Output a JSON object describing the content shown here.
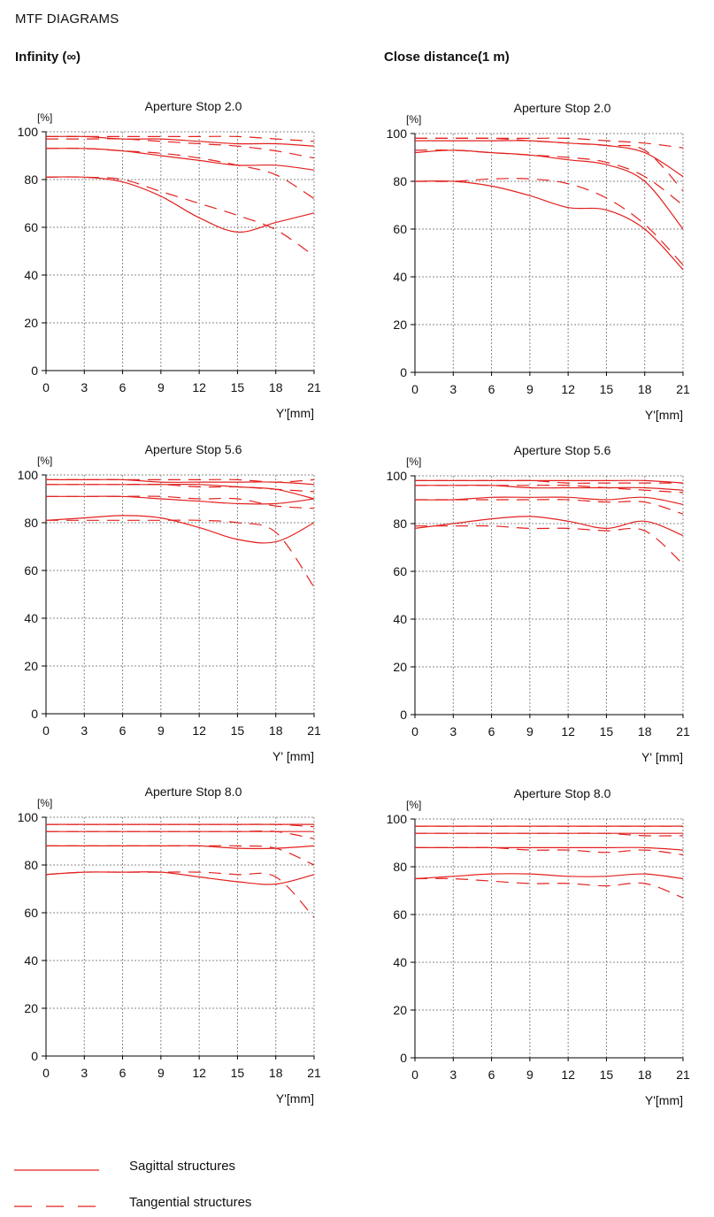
{
  "page": {
    "heading": "MTF DIAGRAMS",
    "column_titles": [
      "Infinity (∞)",
      "Close distance(1 m)"
    ]
  },
  "colors": {
    "curve": "#e2221f",
    "grid": "#888888",
    "axis": "#000000"
  },
  "legend": {
    "sagittal": "Sagittal structures",
    "tangential": "Tangential structures"
  },
  "chart_data": [
    {
      "type": "line",
      "column": "Infinity (∞)",
      "title": "Aperture Stop 2.0",
      "ylabel": "[%]",
      "xlabel": "Y'[mm]",
      "xlim": [
        0,
        21
      ],
      "ylim": [
        0,
        100
      ],
      "xticks": [
        0,
        3,
        6,
        9,
        12,
        15,
        18,
        21
      ],
      "yticks": [
        0,
        20,
        40,
        60,
        80,
        100
      ],
      "grid": true,
      "x": [
        0,
        3,
        6,
        9,
        12,
        15,
        18,
        21
      ],
      "series": [
        {
          "style": "solid",
          "values": [
            98,
            98,
            97,
            97,
            96,
            95,
            95,
            94
          ]
        },
        {
          "style": "dashed",
          "values": [
            98,
            98,
            98,
            98,
            98,
            98,
            97,
            96
          ]
        },
        {
          "style": "solid",
          "values": [
            93,
            93,
            92,
            90,
            88,
            86,
            86,
            84
          ]
        },
        {
          "style": "dashed",
          "values": [
            97,
            97,
            97,
            96,
            95,
            94,
            92,
            89
          ]
        },
        {
          "style": "solid",
          "values": [
            81,
            81,
            79,
            73,
            64,
            58,
            62,
            66
          ]
        },
        {
          "style": "dashed",
          "values": [
            93,
            93,
            92,
            91,
            89,
            86,
            82,
            72
          ]
        },
        {
          "style": "dashed",
          "values": [
            81,
            81,
            80,
            75,
            70,
            65,
            59,
            48
          ]
        }
      ]
    },
    {
      "type": "line",
      "column": "Close distance(1 m)",
      "title": "Aperture Stop 2.0",
      "ylabel": "[%]",
      "xlabel": "Y'[mm]",
      "xlim": [
        0,
        21
      ],
      "ylim": [
        0,
        100
      ],
      "xticks": [
        0,
        3,
        6,
        9,
        12,
        15,
        18,
        21
      ],
      "yticks": [
        0,
        20,
        40,
        60,
        80,
        100
      ],
      "grid": true,
      "x": [
        0,
        3,
        6,
        9,
        12,
        15,
        18,
        21
      ],
      "series": [
        {
          "style": "solid",
          "values": [
            97,
            97,
            97,
            97,
            96,
            95,
            92,
            82
          ]
        },
        {
          "style": "dashed",
          "values": [
            98,
            98,
            98,
            98,
            98,
            97,
            96,
            94
          ]
        },
        {
          "style": "solid",
          "values": [
            92,
            93,
            92,
            91,
            89,
            87,
            80,
            60
          ]
        },
        {
          "style": "dashed",
          "values": [
            98,
            98,
            98,
            97,
            96,
            95,
            93,
            76
          ]
        },
        {
          "style": "solid",
          "values": [
            80,
            80,
            78,
            74,
            69,
            68,
            60,
            43
          ]
        },
        {
          "style": "dashed",
          "values": [
            93,
            93,
            92,
            91,
            90,
            88,
            82,
            70
          ]
        },
        {
          "style": "dashed",
          "values": [
            80,
            80,
            81,
            81,
            79,
            73,
            62,
            45
          ]
        }
      ]
    },
    {
      "type": "line",
      "column": "Infinity (∞)",
      "title": "Aperture Stop 5.6",
      "ylabel": "[%]",
      "xlabel": "Y' [mm]",
      "xlim": [
        0,
        21
      ],
      "ylim": [
        0,
        100
      ],
      "xticks": [
        0,
        3,
        6,
        9,
        12,
        15,
        18,
        21
      ],
      "yticks": [
        0,
        20,
        40,
        60,
        80,
        100
      ],
      "grid": true,
      "x": [
        0,
        3,
        6,
        9,
        12,
        15,
        18,
        21
      ],
      "series": [
        {
          "style": "solid",
          "values": [
            98,
            98,
            98,
            97,
            97,
            97,
            97,
            96
          ]
        },
        {
          "style": "dashed",
          "values": [
            98,
            98,
            98,
            98,
            98,
            98,
            97,
            98
          ]
        },
        {
          "style": "solid",
          "values": [
            96,
            96,
            96,
            96,
            96,
            95,
            94,
            90
          ]
        },
        {
          "style": "dashed",
          "values": [
            96,
            96,
            96,
            96,
            95,
            95,
            94,
            93
          ]
        },
        {
          "style": "solid",
          "values": [
            91,
            91,
            91,
            90,
            89,
            88,
            88,
            90
          ]
        },
        {
          "style": "dashed",
          "values": [
            91,
            91,
            91,
            91,
            90,
            90,
            87,
            86
          ]
        },
        {
          "style": "solid",
          "values": [
            81,
            82,
            83,
            82,
            78,
            73,
            72,
            80
          ]
        },
        {
          "style": "dashed",
          "values": [
            81,
            81,
            81,
            81,
            81,
            80,
            76,
            53
          ]
        }
      ]
    },
    {
      "type": "line",
      "column": "Close distance(1 m)",
      "title": "Aperture Stop 5.6",
      "ylabel": "[%]",
      "xlabel": "Y' [mm]",
      "xlim": [
        0,
        21
      ],
      "ylim": [
        0,
        100
      ],
      "xticks": [
        0,
        3,
        6,
        9,
        12,
        15,
        18,
        21
      ],
      "yticks": [
        0,
        20,
        40,
        60,
        80,
        100
      ],
      "grid": true,
      "x": [
        0,
        3,
        6,
        9,
        12,
        15,
        18,
        21
      ],
      "series": [
        {
          "style": "solid",
          "values": [
            98,
            98,
            98,
            98,
            98,
            98,
            98,
            97
          ]
        },
        {
          "style": "dashed",
          "values": [
            98,
            98,
            98,
            98,
            97,
            97,
            97,
            97
          ]
        },
        {
          "style": "solid",
          "values": [
            96,
            96,
            96,
            95,
            95,
            95,
            95,
            94
          ]
        },
        {
          "style": "dashed",
          "values": [
            96,
            96,
            96,
            96,
            96,
            95,
            94,
            93
          ]
        },
        {
          "style": "solid",
          "values": [
            90,
            90,
            91,
            91,
            91,
            90,
            91,
            88
          ]
        },
        {
          "style": "dashed",
          "values": [
            90,
            90,
            90,
            90,
            90,
            89,
            89,
            84
          ]
        },
        {
          "style": "solid",
          "values": [
            78,
            80,
            82,
            83,
            81,
            78,
            81,
            75
          ]
        },
        {
          "style": "dashed",
          "values": [
            79,
            79,
            79,
            78,
            78,
            77,
            77,
            63
          ]
        }
      ]
    },
    {
      "type": "line",
      "column": "Infinity (∞)",
      "title": "Aperture Stop 8.0",
      "ylabel": "[%]",
      "xlabel": "Y'[mm]",
      "xlim": [
        0,
        21
      ],
      "ylim": [
        0,
        100
      ],
      "xticks": [
        0,
        3,
        6,
        9,
        12,
        15,
        18,
        21
      ],
      "yticks": [
        0,
        20,
        40,
        60,
        80,
        100
      ],
      "grid": true,
      "x": [
        0,
        3,
        6,
        9,
        12,
        15,
        18,
        21
      ],
      "series": [
        {
          "style": "solid",
          "values": [
            97,
            97,
            97,
            97,
            97,
            97,
            97,
            97
          ]
        },
        {
          "style": "dashed",
          "values": [
            97,
            97,
            97,
            97,
            97,
            97,
            97,
            96
          ]
        },
        {
          "style": "solid",
          "values": [
            94,
            94,
            94,
            94,
            94,
            94,
            94,
            94
          ]
        },
        {
          "style": "dashed",
          "values": [
            94,
            94,
            94,
            94,
            94,
            94,
            94,
            91
          ]
        },
        {
          "style": "solid",
          "values": [
            88,
            88,
            88,
            88,
            88,
            87,
            87,
            88
          ]
        },
        {
          "style": "dashed",
          "values": [
            88,
            88,
            88,
            88,
            88,
            88,
            87,
            80
          ]
        },
        {
          "style": "solid",
          "values": [
            76,
            77,
            77,
            77,
            75,
            73,
            72,
            76
          ]
        },
        {
          "style": "dashed",
          "values": [
            76,
            77,
            77,
            77,
            77,
            76,
            75,
            58
          ]
        }
      ]
    },
    {
      "type": "line",
      "column": "Close distance(1 m)",
      "title": "Aperture Stop 8.0",
      "ylabel": "[%]",
      "xlabel": "Y'[mm]",
      "xlim": [
        0,
        21
      ],
      "ylim": [
        0,
        100
      ],
      "xticks": [
        0,
        3,
        6,
        9,
        12,
        15,
        18,
        21
      ],
      "yticks": [
        0,
        20,
        40,
        60,
        80,
        100
      ],
      "grid": true,
      "x": [
        0,
        3,
        6,
        9,
        12,
        15,
        18,
        21
      ],
      "series": [
        {
          "style": "solid",
          "values": [
            97,
            97,
            97,
            97,
            97,
            97,
            97,
            97
          ]
        },
        {
          "style": "dashed",
          "values": [
            97,
            97,
            97,
            97,
            97,
            97,
            97,
            97
          ]
        },
        {
          "style": "solid",
          "values": [
            94,
            94,
            94,
            94,
            94,
            94,
            94,
            94
          ]
        },
        {
          "style": "dashed",
          "values": [
            94,
            94,
            94,
            94,
            94,
            94,
            93,
            93
          ]
        },
        {
          "style": "solid",
          "values": [
            88,
            88,
            88,
            88,
            88,
            88,
            88,
            87
          ]
        },
        {
          "style": "dashed",
          "values": [
            88,
            88,
            88,
            87,
            87,
            86,
            87,
            85
          ]
        },
        {
          "style": "solid",
          "values": [
            75,
            76,
            77,
            77,
            76,
            76,
            77,
            75
          ]
        },
        {
          "style": "dashed",
          "values": [
            75,
            75,
            74,
            73,
            73,
            72,
            73,
            67
          ]
        }
      ]
    }
  ]
}
